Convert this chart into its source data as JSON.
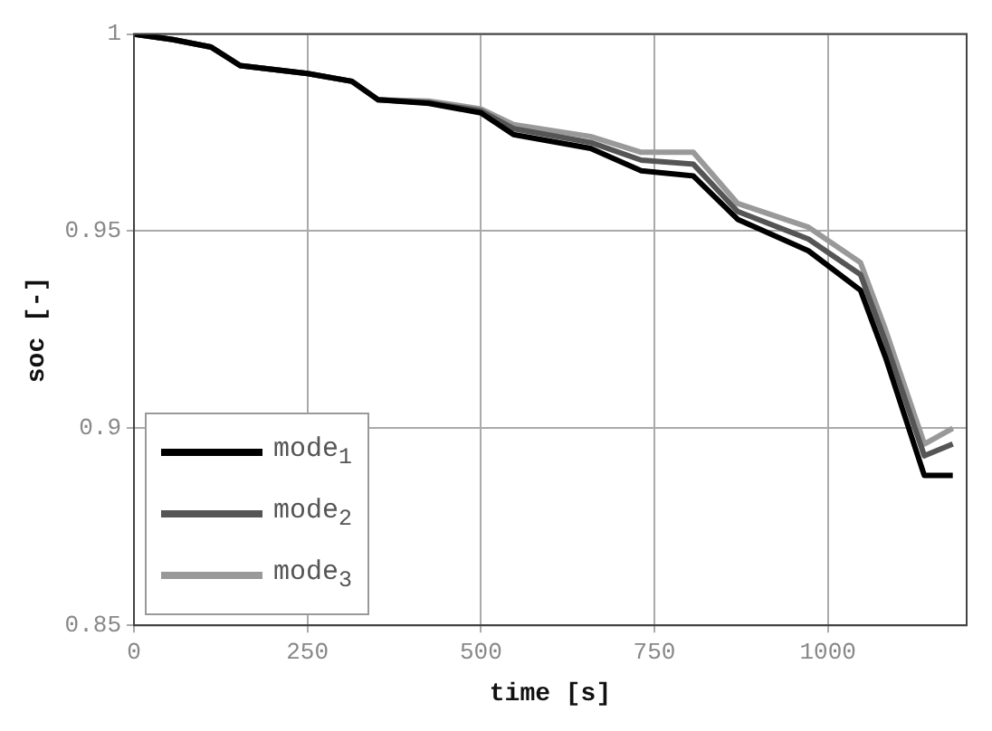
{
  "chart_data": {
    "type": "line",
    "xlabel": "time [s]",
    "ylabel": "soc [-]",
    "x": [
      0,
      56,
      111,
      153,
      250,
      314,
      352,
      425,
      500,
      547,
      658,
      731,
      806,
      870,
      972,
      1047,
      1083,
      1139,
      1180
    ],
    "series": [
      {
        "name": "mode$_{1}$",
        "color": "#000000",
        "values": [
          1,
          0.9986,
          0.9967,
          0.992,
          0.99,
          0.988,
          0.9833,
          0.9824,
          0.98,
          0.9745,
          0.971,
          0.9653,
          0.964,
          0.953,
          0.945,
          0.935,
          0.918,
          0.888,
          0.888
        ]
      },
      {
        "name": "mode$_{2}$",
        "color": "#555555",
        "values": [
          1,
          0.9986,
          0.9967,
          0.992,
          0.99,
          0.988,
          0.9833,
          0.9826,
          0.9805,
          0.976,
          0.9725,
          0.968,
          0.967,
          0.955,
          0.948,
          0.939,
          0.922,
          0.893,
          0.896
        ]
      },
      {
        "name": "mode$_{3}$",
        "color": "#999999",
        "values": [
          1,
          0.9986,
          0.9967,
          0.992,
          0.99,
          0.988,
          0.9833,
          0.983,
          0.981,
          0.977,
          0.974,
          0.97,
          0.97,
          0.957,
          0.951,
          0.942,
          0.925,
          0.896,
          0.9
        ]
      }
    ],
    "xlim": [
      0,
      1200
    ],
    "xticks": [
      0,
      250,
      500,
      750,
      1000
    ],
    "ylim": [
      0.85,
      1
    ],
    "yticks": [
      0.85,
      0.9,
      0.95,
      1
    ],
    "grid": true,
    "legend": "bottom left",
    "marker": "none",
    "line_style": "solid"
  }
}
